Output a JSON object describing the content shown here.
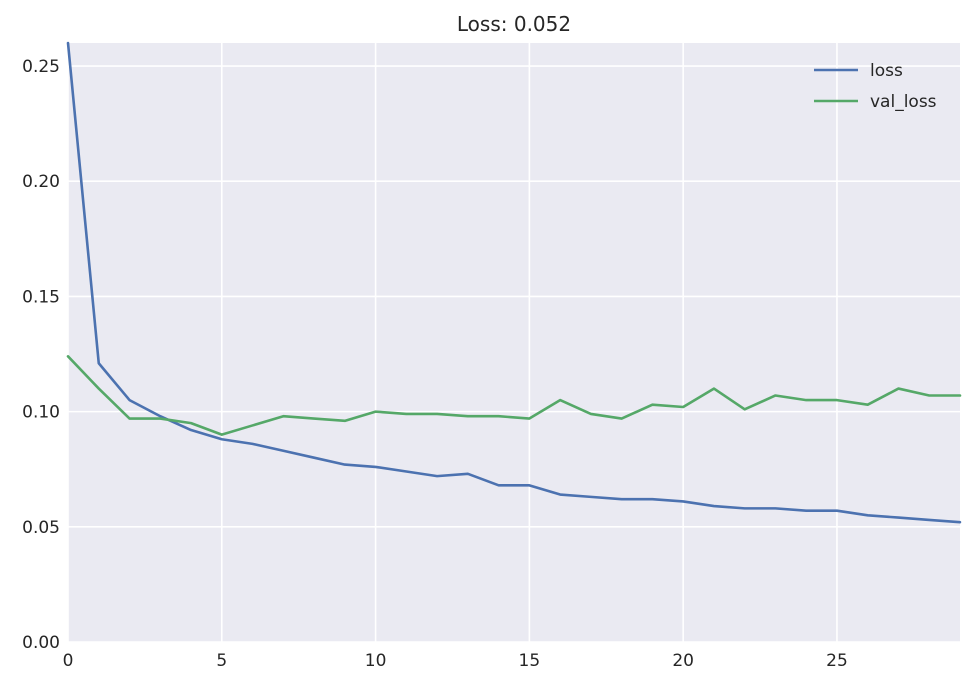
{
  "chart_data": {
    "type": "line",
    "title": "Loss: 0.052",
    "xlabel": "",
    "ylabel": "",
    "xlim": [
      0,
      29
    ],
    "ylim": [
      0.0,
      0.26
    ],
    "x_ticks": [
      0,
      5,
      10,
      15,
      20,
      25
    ],
    "x_tick_labels": [
      "0",
      "5",
      "10",
      "15",
      "20",
      "25"
    ],
    "y_ticks": [
      0.0,
      0.05,
      0.1,
      0.15,
      0.2,
      0.25
    ],
    "y_tick_labels": [
      "0.00",
      "0.05",
      "0.10",
      "0.15",
      "0.20",
      "0.25"
    ],
    "grid": true,
    "legend_position": "top-right",
    "x": [
      0,
      1,
      2,
      3,
      4,
      5,
      6,
      7,
      8,
      9,
      10,
      11,
      12,
      13,
      14,
      15,
      16,
      17,
      18,
      19,
      20,
      21,
      22,
      23,
      24,
      25,
      26,
      27,
      28,
      29
    ],
    "series": [
      {
        "name": "loss",
        "color": "#4c72b0",
        "values": [
          0.26,
          0.121,
          0.105,
          0.098,
          0.092,
          0.088,
          0.086,
          0.083,
          0.08,
          0.077,
          0.076,
          0.074,
          0.072,
          0.073,
          0.068,
          0.068,
          0.064,
          0.063,
          0.062,
          0.062,
          0.061,
          0.059,
          0.058,
          0.058,
          0.057,
          0.057,
          0.055,
          0.054,
          0.053,
          0.052
        ]
      },
      {
        "name": "val_loss",
        "color": "#55a868",
        "values": [
          0.124,
          0.11,
          0.097,
          0.097,
          0.095,
          0.09,
          0.094,
          0.098,
          0.097,
          0.096,
          0.1,
          0.099,
          0.099,
          0.098,
          0.098,
          0.097,
          0.105,
          0.099,
          0.097,
          0.103,
          0.102,
          0.11,
          0.101,
          0.107,
          0.105,
          0.105,
          0.103,
          0.11,
          0.107,
          0.107
        ]
      }
    ],
    "colors": {
      "plot_background": "#eaeaf2",
      "grid": "#ffffff",
      "text": "#262626"
    }
  }
}
